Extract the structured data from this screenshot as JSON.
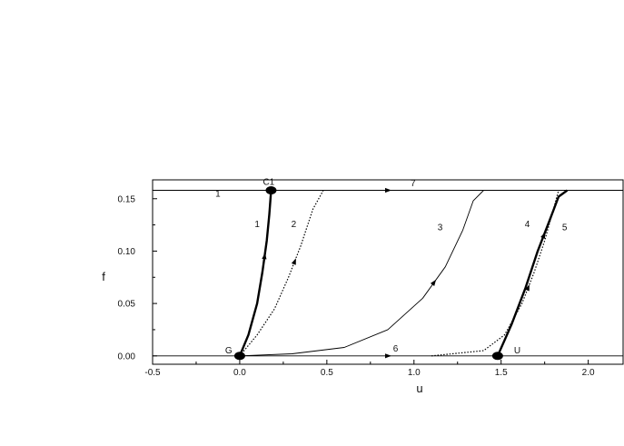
{
  "chart_data": {
    "type": "line",
    "title": "",
    "xlabel": "u",
    "ylabel": "f",
    "xlim": [
      -0.5,
      2.2
    ],
    "ylim": [
      -0.008,
      0.168
    ],
    "grid": false,
    "legend": "none",
    "x_ticks": [
      {
        "value": -0.5,
        "label": "-0.5"
      },
      {
        "value": 0.0,
        "label": "0.0"
      },
      {
        "value": 0.5,
        "label": "0.5"
      },
      {
        "value": 1.0,
        "label": "1.0"
      },
      {
        "value": 1.5,
        "label": "1.5"
      },
      {
        "value": 2.0,
        "label": "2.0"
      }
    ],
    "y_ticks": [
      {
        "value": 0.0,
        "label": "0.00"
      },
      {
        "value": 0.05,
        "label": "0.05"
      },
      {
        "value": 0.1,
        "label": "0.10"
      },
      {
        "value": 0.15,
        "label": "0.15"
      }
    ],
    "series": [
      {
        "label": "1",
        "style": "thick",
        "x": [
          0.0,
          0.05,
          0.1,
          0.13,
          0.155,
          0.17,
          0.18
        ],
        "y": [
          0.0,
          0.02,
          0.05,
          0.08,
          0.11,
          0.135,
          0.158
        ]
      },
      {
        "label": "2",
        "style": "dotted",
        "x": [
          0.0,
          0.1,
          0.2,
          0.28,
          0.35,
          0.42,
          0.48
        ],
        "y": [
          0.0,
          0.02,
          0.045,
          0.075,
          0.105,
          0.14,
          0.158
        ]
      },
      {
        "label": "3",
        "style": "thin",
        "x": [
          0.0,
          0.3,
          0.6,
          0.85,
          1.05,
          1.18,
          1.28,
          1.34,
          1.4
        ],
        "y": [
          0.0,
          0.002,
          0.008,
          0.025,
          0.055,
          0.085,
          0.12,
          0.148,
          0.158
        ]
      },
      {
        "label": "4",
        "style": "dotted",
        "x": [
          1.1,
          1.4,
          1.52,
          1.62,
          1.69,
          1.75,
          1.8,
          1.83
        ],
        "y": [
          0.0,
          0.005,
          0.02,
          0.05,
          0.08,
          0.11,
          0.14,
          0.158
        ]
      },
      {
        "label": "5",
        "style": "thick",
        "x": [
          1.48,
          1.56,
          1.64,
          1.71,
          1.78,
          1.83,
          1.88
        ],
        "y": [
          0.0,
          0.03,
          0.065,
          0.1,
          0.13,
          0.152,
          0.158
        ]
      },
      {
        "label": "6",
        "style": "thin",
        "x": [
          -0.5,
          2.2
        ],
        "y": [
          0.0,
          0.0
        ]
      },
      {
        "label": "7",
        "style": "thin",
        "x": [
          -0.5,
          2.2
        ],
        "y": [
          0.158,
          0.158
        ]
      }
    ],
    "points": [
      {
        "label": "C1",
        "x": 0.18,
        "y": 0.158
      },
      {
        "label": "G",
        "x": 0.0,
        "y": 0.0
      },
      {
        "label": "U",
        "x": 1.48,
        "y": 0.0
      }
    ],
    "annotations": [
      {
        "text": "1",
        "x": -0.14,
        "y": 0.152,
        "anchor": "start"
      },
      {
        "text": "7",
        "x": 0.98,
        "y": 0.162,
        "anchor": "start"
      },
      {
        "text": "1",
        "x": 0.1,
        "y": 0.123,
        "anchor": "middle"
      },
      {
        "text": "2",
        "x": 0.31,
        "y": 0.123,
        "anchor": "middle"
      },
      {
        "text": "3",
        "x": 1.15,
        "y": 0.12,
        "anchor": "middle"
      },
      {
        "text": "4",
        "x": 1.65,
        "y": 0.123,
        "anchor": "middle"
      },
      {
        "text": "5",
        "x": 1.85,
        "y": 0.12,
        "anchor": "start"
      },
      {
        "text": "6",
        "x": 0.88,
        "y": 0.004,
        "anchor": "start"
      }
    ]
  }
}
